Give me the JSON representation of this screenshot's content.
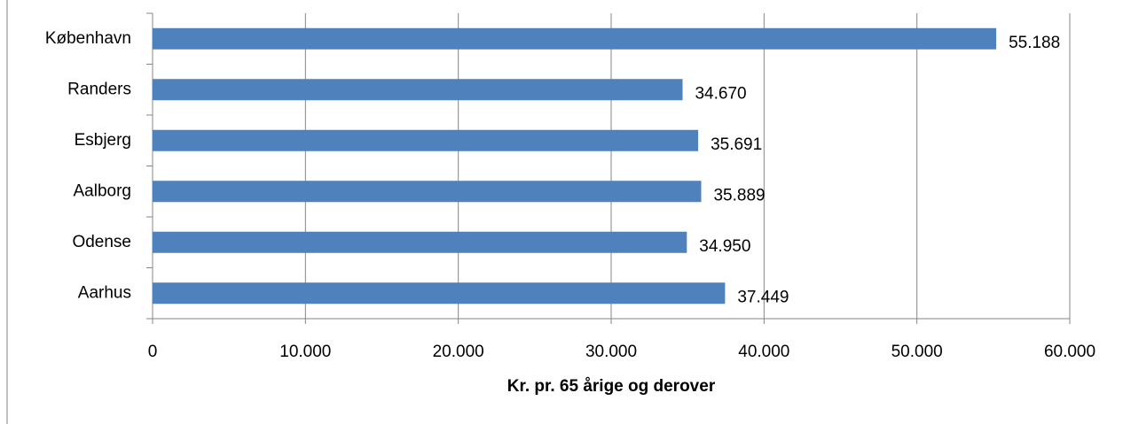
{
  "chart_data": {
    "type": "barh",
    "xlabel": "Kr. pr. 65 årige og derover",
    "categories": [
      "København",
      "Randers",
      "Esbjerg",
      "Aalborg",
      "Odense",
      "Aarhus"
    ],
    "values": [
      55188,
      34670,
      35691,
      35889,
      34950,
      37449
    ],
    "value_labels": [
      "55.188",
      "34.670",
      "35.691",
      "35.889",
      "34.950",
      "37.449"
    ],
    "color": "#4f81bd",
    "xlim": [
      0,
      60000
    ],
    "xticks": [
      0,
      {
        "value": 10000,
        "label": "10.000"
      },
      {
        "value": 20000,
        "label": "20.000"
      },
      {
        "value": 30000,
        "label": "30.000"
      },
      {
        "value": 40000,
        "label": "40.000"
      },
      {
        "value": 50000,
        "label": "50.000"
      },
      {
        "value": 60000,
        "label": "60.000"
      }
    ],
    "grid": true
  }
}
